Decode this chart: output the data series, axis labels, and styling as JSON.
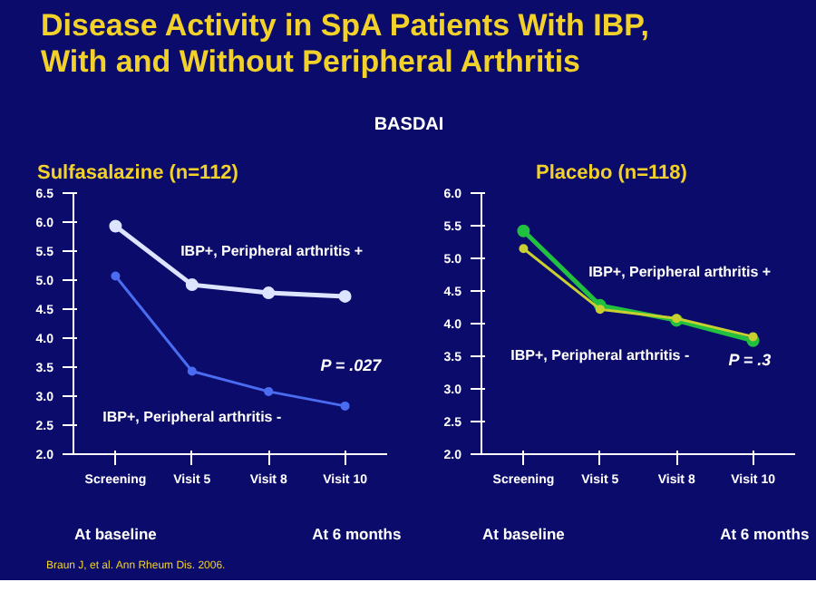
{
  "chart_data": [
    {
      "type": "other",
      "title": "Disease Activity in SpA Patients With IBP, With and Without Peripheral Arthritis",
      "subtitle": "BASDAI"
    },
    {
      "type": "line",
      "title": "Sulfasalazine (n=112)",
      "categories": [
        "Screening",
        "Visit 5",
        "Visit 8",
        "Visit 10"
      ],
      "ylim": [
        2.0,
        6.5
      ],
      "yticks": [
        {
          "value": 2,
          "label": "2.0"
        },
        2.5,
        {
          "value": 3,
          "label": "3.0"
        },
        3.5,
        {
          "value": 4,
          "label": "4.0"
        },
        4.5,
        {
          "value": 5,
          "label": "5.0"
        },
        5.5,
        {
          "value": 6,
          "label": "6.0"
        },
        6.5
      ],
      "grid": false,
      "legend": false,
      "marker": "circle",
      "series": [
        {
          "name": "IBP+, Peripheral arthritis +",
          "color": "#dde4ff",
          "values": [
            5.93,
            4.92,
            4.78,
            4.72
          ]
        },
        {
          "name": "IBP+, Peripheral arthritis -",
          "color": "#4a6cf0",
          "values": [
            5.07,
            3.43,
            3.08,
            2.83
          ]
        }
      ],
      "annotations": [
        "P = .027",
        "At baseline",
        "At 6 months",
        "Braun J, et al. Ann Rheum Dis. 2006."
      ]
    },
    {
      "type": "line",
      "title": "Placebo (n=118)",
      "categories": [
        "Screening",
        "Visit 5",
        "Visit 8",
        "Visit 10"
      ],
      "ylim": [
        2.0,
        6.0
      ],
      "yticks": [
        {
          "value": 2,
          "label": "2.0"
        },
        2.5,
        {
          "value": 3,
          "label": "3.0"
        },
        3.5,
        {
          "value": 4,
          "label": "4.0"
        },
        4.5,
        {
          "value": 5,
          "label": "5.0"
        },
        5.5,
        {
          "value": 6,
          "label": "6.0"
        }
      ],
      "grid": false,
      "legend": false,
      "marker": "circle",
      "series": [
        {
          "name": "IBP+, Peripheral arthritis +",
          "color": "#22c040",
          "values": [
            5.42,
            4.28,
            4.05,
            3.74
          ]
        },
        {
          "name": "IBP+, Peripheral arthritis -",
          "color": "#c8d030",
          "values": [
            5.15,
            4.22,
            4.08,
            3.8
          ]
        }
      ],
      "annotations": [
        "P = .3",
        "At baseline",
        "At 6 months"
      ]
    }
  ]
}
